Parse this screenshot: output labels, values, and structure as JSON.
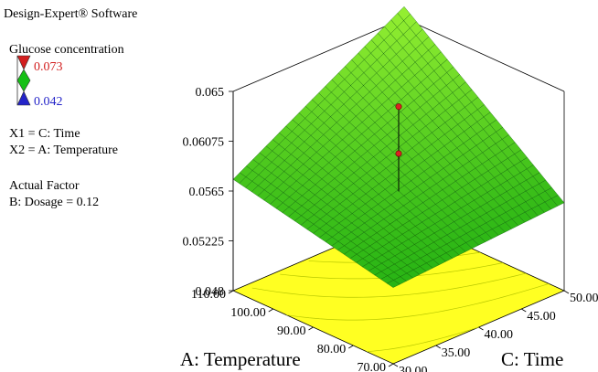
{
  "app": {
    "title": "Design-Expert® Software"
  },
  "legend": {
    "response_name": "Glucose concentration",
    "high_value": "0.073",
    "low_value": "0.042",
    "high_color": "#d21e1e",
    "mid_color": "#16c016",
    "low_color": "#2424c8",
    "x1_definition": "X1 = C: Time",
    "x2_definition": "X2 = A: Temperature",
    "actual_factor_heading": "Actual Factor",
    "actual_factor_value": "B: Dosage = 0.12"
  },
  "chart_data": {
    "type": "surface",
    "title": "",
    "x_label": "C: Time",
    "y_label": "A: Temperature",
    "z_label": "",
    "x_range": [
      30,
      50
    ],
    "y_range": [
      70,
      110
    ],
    "z_range": [
      0.048,
      0.065
    ],
    "x_ticks": [
      "30.00",
      "35.00",
      "40.00",
      "45.00",
      "50.00"
    ],
    "y_ticks": [
      "70.00",
      "80.00",
      "90.00",
      "100.00",
      "110.00"
    ],
    "z_ticks": [
      "0.048",
      "0.05225",
      "0.0565",
      "0.06075",
      "0.065"
    ],
    "surface_corners": [
      {
        "time": 30,
        "temperature": 70,
        "glucose": 0.0545
      },
      {
        "time": 50,
        "temperature": 70,
        "glucose": 0.0555
      },
      {
        "time": 30,
        "temperature": 110,
        "glucose": 0.0575
      },
      {
        "time": 50,
        "temperature": 110,
        "glucose": 0.066
      }
    ],
    "design_points": [
      {
        "time": 40,
        "temperature": 90,
        "glucose": 0.0637,
        "position": "above surface"
      },
      {
        "time": 40,
        "temperature": 90,
        "glucose": 0.0597,
        "position": "above surface"
      }
    ],
    "surface_color": "#22cc22",
    "floor_color": "#ffff22",
    "point_color": "#dd2222"
  }
}
